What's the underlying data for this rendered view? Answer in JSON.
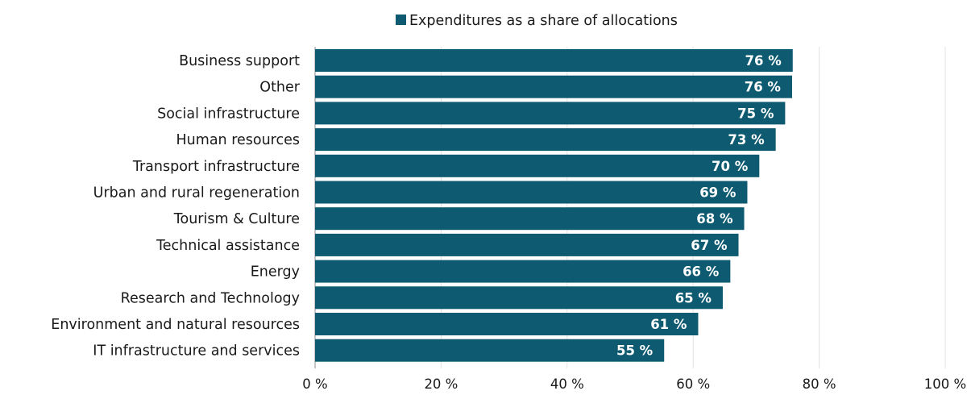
{
  "chart_data": {
    "type": "bar",
    "orientation": "horizontal",
    "title": "",
    "xlabel": "",
    "ylabel": "",
    "legend": {
      "position": "top-center",
      "entries": [
        {
          "label": "Expenditures as a share of allocations",
          "color": "#0e5a70"
        }
      ]
    },
    "categories": [
      "Business support",
      "Other",
      "Social infrastructure",
      "Human resources",
      "Transport infrastructure",
      "Urban and rural regeneration",
      "Tourism & Culture",
      "Technical assistance",
      "Energy",
      "Research and Technology",
      "Environment and natural resources",
      "IT infrastructure and services"
    ],
    "series": [
      {
        "name": "Expenditures as a share of allocations",
        "color": "#0e5a70",
        "values": [
          75.8,
          75.7,
          74.6,
          73.1,
          70.5,
          68.6,
          68.1,
          67.2,
          65.9,
          64.7,
          60.8,
          55.4
        ],
        "data_labels": [
          "76 %",
          "76 %",
          "75 %",
          "73 %",
          "70 %",
          "69 %",
          "68 %",
          "67 %",
          "66 %",
          "65 %",
          "61 %",
          "55 %"
        ]
      }
    ],
    "xlim": [
      0,
      100
    ],
    "xticks": [
      0,
      20,
      40,
      60,
      80,
      100
    ],
    "xtick_labels": [
      "0 %",
      "20 %",
      "40 %",
      "60 %",
      "80 %",
      "100 %"
    ],
    "grid": {
      "vertical": true,
      "color": "#e3e3e3"
    }
  }
}
